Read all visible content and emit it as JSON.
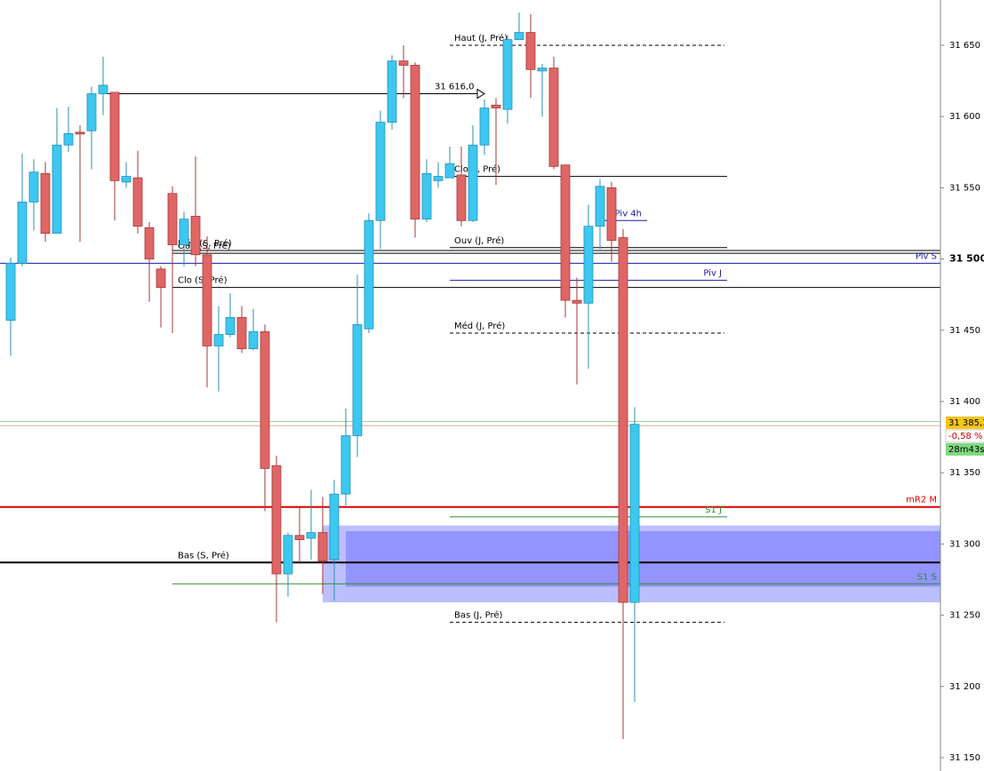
{
  "chart_data": {
    "type": "candlestick",
    "candles": {
      "open": [
        31457,
        31497,
        31540,
        31560,
        31518,
        31580,
        31589,
        31590,
        31616,
        31617,
        31554,
        31557,
        31522,
        31493,
        31546,
        31510,
        31530,
        31503,
        31439,
        31447,
        31459,
        31437,
        31449,
        31355,
        31279,
        31306,
        31304,
        31308,
        31289,
        31335,
        31376,
        31451,
        31527,
        31596,
        31639,
        31636,
        31528,
        31555,
        31557,
        31559,
        31527,
        31580,
        31608,
        31605,
        31654,
        31659,
        31632,
        31634,
        31566,
        31471,
        31469,
        31523,
        31550,
        31515,
        31259
      ],
      "high": [
        31501,
        31574,
        31570,
        31568,
        31606,
        31607,
        31594,
        31621,
        31642,
        31617,
        31568,
        31576,
        31526,
        31495,
        31551,
        31533,
        31572,
        31516,
        31467,
        31476,
        31467,
        31465,
        31454,
        31362,
        31308,
        31326,
        31338,
        31333,
        31345,
        31395,
        31489,
        31532,
        31604,
        31643,
        31650,
        31638,
        31570,
        31568,
        31579,
        31579,
        31594,
        31612,
        31613,
        31657,
        31673,
        31672,
        31637,
        31642,
        31566,
        31487,
        31538,
        31556,
        31554,
        31521,
        31396
      ],
      "low": [
        31432,
        31495,
        31520,
        31512,
        31518,
        31575,
        31512,
        31563,
        31601,
        31527,
        31550,
        31518,
        31470,
        31452,
        31448,
        31495,
        31495,
        31410,
        31407,
        31445,
        31434,
        31436,
        31323,
        31245,
        31263,
        31286,
        31289,
        31265,
        31260,
        31327,
        31361,
        31448,
        31507,
        31591,
        31613,
        31515,
        31526,
        31550,
        31557,
        31523,
        31526,
        31573,
        31552,
        31595,
        31654,
        31613,
        31600,
        31563,
        31459,
        31412,
        31423,
        31507,
        31498,
        31163,
        31189
      ],
      "close": [
        31497,
        31540,
        31561,
        31518,
        31580,
        31588,
        31588,
        31616,
        31622,
        31555,
        31558,
        31523,
        31500,
        31480,
        31510,
        31528,
        31503,
        31439,
        31447,
        31459,
        31437,
        31449,
        31353,
        31279,
        31306,
        31303,
        31308,
        31288,
        31335,
        31376,
        31454,
        31527,
        31596,
        31639,
        31636,
        31528,
        31560,
        31558,
        31567,
        31527,
        31580,
        31606,
        31606,
        31654,
        31659,
        31633,
        31634,
        31565,
        31471,
        31469,
        31523,
        31551,
        31513,
        31259,
        31384
      ],
      "up_color": "#3cc8f0",
      "down_color": "#e06666"
    },
    "ylim": [
      31138,
      31680
    ],
    "yticks": [
      {
        "value": 31150,
        "label": "31 150"
      },
      {
        "value": 31200,
        "label": "31 200"
      },
      {
        "value": 31250,
        "label": "31 250"
      },
      {
        "value": 31300,
        "label": "31 300"
      },
      {
        "value": 31350,
        "label": "31 350"
      },
      {
        "value": 31400,
        "label": "31 400"
      },
      {
        "value": 31450,
        "label": "31 450"
      },
      {
        "value": 31500,
        "label": "31 500"
      },
      {
        "value": 31550,
        "label": "31 550"
      },
      {
        "value": 31600,
        "label": "31 600"
      },
      {
        "value": 31650,
        "label": "31 650"
      }
    ],
    "levels": [
      {
        "label": "Haut (J, Pré)",
        "value": 31650,
        "color": "#000000",
        "style": "dashed"
      },
      {
        "label": "31 616,0",
        "value": 31616,
        "color": "#000000",
        "style": "solid"
      },
      {
        "label": "Clo (J, Pré)",
        "value": 31558,
        "color": "#000000",
        "style": "solid"
      },
      {
        "label": "Piv 4h",
        "value": 31527,
        "color": "#1a1aa6",
        "style": "solid"
      },
      {
        "label": "Ouv (J, Pré)",
        "value": 31508,
        "color": "#000000",
        "style": "solid"
      },
      {
        "label": "Méd (S, Pré)",
        "value": 31506,
        "color": "#000000",
        "style": "solid"
      },
      {
        "label": "Ouv (S, Pré)",
        "value": 31504,
        "color": "#000000",
        "style": "solid"
      },
      {
        "label": "Piv S",
        "value": 31497,
        "color": "#1a1aa6",
        "style": "solid"
      },
      {
        "label": "Piv J",
        "value": 31485,
        "color": "#1a1aa6",
        "style": "solid"
      },
      {
        "label": "Clo (S, Pré)",
        "value": 31480,
        "color": "#000000",
        "style": "solid"
      },
      {
        "label": "Méd (J, Pré)",
        "value": 31448,
        "color": "#000000",
        "style": "dashed"
      },
      {
        "label": "mR2 M",
        "value": 31326,
        "color": "#e00000",
        "style": "thick"
      },
      {
        "label": "S1 J",
        "value": 31319,
        "color": "#2e8b2e",
        "style": "solid"
      },
      {
        "label": "Bas (S, Pré)",
        "value": 31287,
        "color": "#000000",
        "style": "thick"
      },
      {
        "label": "S1 S",
        "value": 31272,
        "color": "#2e8b2e",
        "style": "solid"
      },
      {
        "label": "Bas (J, Pré)",
        "value": 31245,
        "color": "#000000",
        "style": "dashed"
      }
    ],
    "lines": [
      {
        "value": 31386,
        "color": "#9ad89a"
      },
      {
        "value": 31383,
        "color": "#d8b48a"
      }
    ],
    "zones": [
      {
        "from": 31313,
        "to": 31259,
        "color": "#b0b4ff"
      },
      {
        "from": 31309,
        "to": 31270,
        "color": "#8c8cff"
      }
    ],
    "last": {
      "value": 31385.1,
      "label": "31 385,1"
    },
    "change": "-0,58 %",
    "timer": "28m43s"
  }
}
